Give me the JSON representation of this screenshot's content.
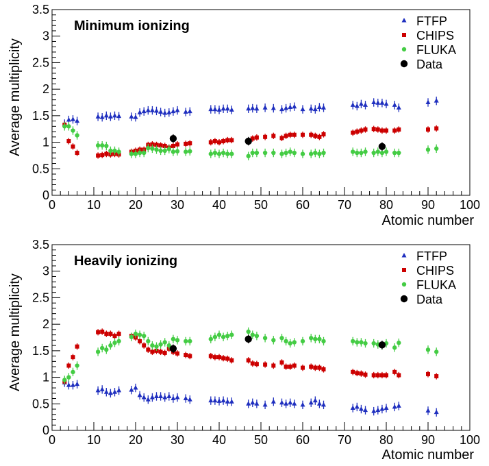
{
  "colors": {
    "FTFP": "#1f2fbf",
    "CHIPS": "#cc0000",
    "FLUKA": "#44cc44",
    "Data": "#000000"
  },
  "legend": [
    "FTFP",
    "CHIPS",
    "FLUKA",
    "Data"
  ],
  "chart_data": [
    {
      "type": "scatter",
      "title": "Minimum ionizing",
      "xlabel": "Atomic number",
      "ylabel": "Average multiplicity",
      "xlim": [
        0,
        100
      ],
      "ylim": [
        0,
        3.5
      ],
      "xticks": [
        "0",
        "10",
        "20",
        "30",
        "40",
        "50",
        "60",
        "70",
        "80",
        "90",
        "100"
      ],
      "yticks": [
        "0",
        "0.5",
        "1",
        "1.5",
        "2",
        "2.5",
        "3",
        "3.5"
      ],
      "grid": false,
      "legend_position": "top-right",
      "series": [
        {
          "name": "FTFP",
          "x": [
            3,
            4,
            5,
            6,
            11,
            12,
            13,
            14,
            15,
            16,
            19,
            20,
            21,
            22,
            23,
            24,
            25,
            26,
            27,
            28,
            29,
            30,
            32,
            33,
            38,
            39,
            40,
            41,
            42,
            43,
            47,
            48,
            49,
            51,
            53,
            55,
            56,
            57,
            58,
            60,
            62,
            63,
            64,
            65,
            72,
            73,
            74,
            75,
            77,
            78,
            79,
            80,
            82,
            83,
            90,
            92
          ],
          "y": [
            1.35,
            1.42,
            1.43,
            1.4,
            1.48,
            1.47,
            1.5,
            1.48,
            1.5,
            1.49,
            1.48,
            1.47,
            1.56,
            1.58,
            1.6,
            1.6,
            1.59,
            1.57,
            1.55,
            1.56,
            1.58,
            1.6,
            1.57,
            1.58,
            1.62,
            1.62,
            1.61,
            1.63,
            1.63,
            1.61,
            1.63,
            1.64,
            1.63,
            1.65,
            1.64,
            1.62,
            1.64,
            1.66,
            1.67,
            1.62,
            1.63,
            1.62,
            1.66,
            1.65,
            1.7,
            1.68,
            1.72,
            1.7,
            1.75,
            1.74,
            1.74,
            1.72,
            1.7,
            1.65,
            1.75,
            1.78
          ],
          "err": 0.08
        },
        {
          "name": "CHIPS",
          "x": [
            3,
            4,
            5,
            6,
            11,
            12,
            13,
            14,
            15,
            16,
            19,
            20,
            21,
            22,
            23,
            24,
            25,
            26,
            27,
            28,
            29,
            30,
            32,
            33,
            38,
            39,
            40,
            41,
            42,
            43,
            47,
            48,
            49,
            51,
            53,
            55,
            56,
            57,
            58,
            60,
            62,
            63,
            64,
            65,
            72,
            73,
            74,
            75,
            77,
            78,
            79,
            80,
            82,
            83,
            90,
            92
          ],
          "y": [
            1.33,
            1.02,
            0.92,
            0.8,
            0.75,
            0.76,
            0.78,
            0.77,
            0.78,
            0.77,
            0.82,
            0.84,
            0.86,
            0.86,
            0.95,
            0.96,
            0.95,
            0.94,
            0.93,
            0.9,
            0.93,
            0.96,
            0.97,
            0.98,
            1.0,
            1.02,
            1.0,
            1.02,
            1.04,
            1.04,
            1.02,
            1.07,
            1.09,
            1.1,
            1.12,
            1.08,
            1.12,
            1.14,
            1.14,
            1.14,
            1.14,
            1.12,
            1.1,
            1.15,
            1.18,
            1.2,
            1.22,
            1.24,
            1.25,
            1.24,
            1.22,
            1.22,
            1.22,
            1.24,
            1.24,
            1.26
          ],
          "err": 0.06
        },
        {
          "name": "FLUKA",
          "x": [
            3,
            4,
            5,
            6,
            11,
            12,
            13,
            14,
            15,
            16,
            19,
            20,
            21,
            22,
            23,
            24,
            25,
            26,
            27,
            28,
            29,
            30,
            32,
            33,
            38,
            39,
            40,
            41,
            42,
            43,
            47,
            48,
            49,
            51,
            53,
            55,
            56,
            57,
            58,
            60,
            62,
            63,
            64,
            65,
            72,
            73,
            74,
            75,
            77,
            78,
            79,
            80,
            82,
            83,
            90,
            92
          ],
          "y": [
            1.3,
            1.3,
            1.22,
            1.13,
            0.94,
            0.94,
            0.93,
            0.84,
            0.84,
            0.82,
            0.78,
            0.78,
            0.8,
            0.8,
            0.89,
            0.88,
            0.86,
            0.84,
            0.84,
            0.87,
            0.82,
            0.83,
            0.82,
            0.83,
            0.78,
            0.8,
            0.78,
            0.8,
            0.78,
            0.78,
            0.74,
            0.8,
            0.8,
            0.8,
            0.8,
            0.78,
            0.8,
            0.82,
            0.8,
            0.78,
            0.78,
            0.8,
            0.78,
            0.8,
            0.82,
            0.8,
            0.8,
            0.82,
            0.8,
            0.82,
            0.8,
            0.82,
            0.8,
            0.8,
            0.86,
            0.88
          ],
          "err": 0.08
        },
        {
          "name": "Data",
          "x": [
            29,
            47,
            79
          ],
          "y": [
            1.07,
            1.02,
            0.92
          ],
          "err": 0.08
        }
      ]
    },
    {
      "type": "scatter",
      "title": "Heavily ionizing",
      "xlabel": "Atomic number",
      "ylabel": "Average multiplicity",
      "xlim": [
        0,
        100
      ],
      "ylim": [
        0,
        3.5
      ],
      "xticks": [
        "0",
        "10",
        "20",
        "30",
        "40",
        "50",
        "60",
        "70",
        "80",
        "90",
        "100"
      ],
      "yticks": [
        "0",
        "0.5",
        "1",
        "1.5",
        "2",
        "2.5",
        "3",
        "3.5"
      ],
      "grid": false,
      "legend_position": "top-right",
      "series": [
        {
          "name": "FTFP",
          "x": [
            3,
            4,
            5,
            6,
            11,
            12,
            13,
            14,
            15,
            16,
            19,
            20,
            21,
            22,
            23,
            24,
            25,
            26,
            27,
            28,
            29,
            30,
            32,
            33,
            38,
            39,
            40,
            41,
            42,
            43,
            47,
            48,
            49,
            51,
            53,
            55,
            56,
            57,
            58,
            60,
            62,
            63,
            64,
            65,
            72,
            73,
            74,
            75,
            77,
            78,
            79,
            80,
            82,
            83,
            90,
            92
          ],
          "y": [
            0.9,
            0.85,
            0.85,
            0.87,
            0.75,
            0.77,
            0.72,
            0.7,
            0.72,
            0.75,
            0.76,
            0.8,
            0.66,
            0.62,
            0.58,
            0.62,
            0.64,
            0.64,
            0.62,
            0.64,
            0.6,
            0.62,
            0.6,
            0.58,
            0.56,
            0.56,
            0.55,
            0.56,
            0.54,
            0.54,
            0.5,
            0.52,
            0.5,
            0.48,
            0.54,
            0.52,
            0.5,
            0.52,
            0.5,
            0.48,
            0.52,
            0.56,
            0.5,
            0.48,
            0.42,
            0.44,
            0.4,
            0.38,
            0.36,
            0.38,
            0.4,
            0.42,
            0.44,
            0.46,
            0.37,
            0.34
          ],
          "err": 0.08
        },
        {
          "name": "CHIPS",
          "x": [
            3,
            4,
            5,
            6,
            11,
            12,
            13,
            14,
            15,
            16,
            19,
            20,
            21,
            22,
            23,
            24,
            25,
            26,
            27,
            28,
            29,
            30,
            32,
            33,
            38,
            39,
            40,
            41,
            42,
            43,
            47,
            48,
            49,
            51,
            53,
            55,
            56,
            57,
            58,
            60,
            62,
            63,
            64,
            65,
            72,
            73,
            74,
            75,
            77,
            78,
            79,
            80,
            82,
            83,
            90,
            92
          ],
          "y": [
            0.92,
            1.22,
            1.38,
            1.58,
            1.85,
            1.86,
            1.82,
            1.82,
            1.78,
            1.82,
            1.78,
            1.75,
            1.68,
            1.6,
            1.52,
            1.48,
            1.5,
            1.48,
            1.46,
            1.54,
            1.48,
            1.45,
            1.42,
            1.4,
            1.4,
            1.38,
            1.38,
            1.36,
            1.35,
            1.32,
            1.32,
            1.26,
            1.25,
            1.24,
            1.22,
            1.28,
            1.2,
            1.2,
            1.22,
            1.18,
            1.2,
            1.18,
            1.18,
            1.15,
            1.1,
            1.08,
            1.07,
            1.05,
            1.04,
            1.04,
            1.04,
            1.04,
            1.1,
            1.04,
            1.06,
            1.02
          ],
          "err": 0.06
        },
        {
          "name": "FLUKA",
          "x": [
            3,
            4,
            5,
            6,
            11,
            12,
            13,
            14,
            15,
            16,
            19,
            20,
            21,
            22,
            23,
            24,
            25,
            26,
            27,
            28,
            29,
            30,
            32,
            33,
            38,
            39,
            40,
            41,
            42,
            43,
            47,
            48,
            49,
            51,
            53,
            55,
            56,
            57,
            58,
            60,
            62,
            63,
            64,
            65,
            72,
            73,
            74,
            75,
            77,
            78,
            79,
            80,
            82,
            83,
            90,
            92
          ],
          "y": [
            0.95,
            1.0,
            1.1,
            1.22,
            1.48,
            1.55,
            1.52,
            1.6,
            1.65,
            1.68,
            1.76,
            1.82,
            1.8,
            1.78,
            1.68,
            1.6,
            1.58,
            1.62,
            1.66,
            1.6,
            1.72,
            1.7,
            1.68,
            1.68,
            1.72,
            1.76,
            1.8,
            1.76,
            1.78,
            1.8,
            1.86,
            1.8,
            1.78,
            1.74,
            1.7,
            1.74,
            1.68,
            1.64,
            1.66,
            1.68,
            1.74,
            1.72,
            1.72,
            1.68,
            1.68,
            1.66,
            1.66,
            1.64,
            1.64,
            1.62,
            1.6,
            1.64,
            1.56,
            1.65,
            1.52,
            1.48
          ],
          "err": 0.08
        },
        {
          "name": "Data",
          "x": [
            29,
            47,
            79
          ],
          "y": [
            1.54,
            1.72,
            1.61
          ],
          "err": 0.08
        }
      ]
    }
  ]
}
